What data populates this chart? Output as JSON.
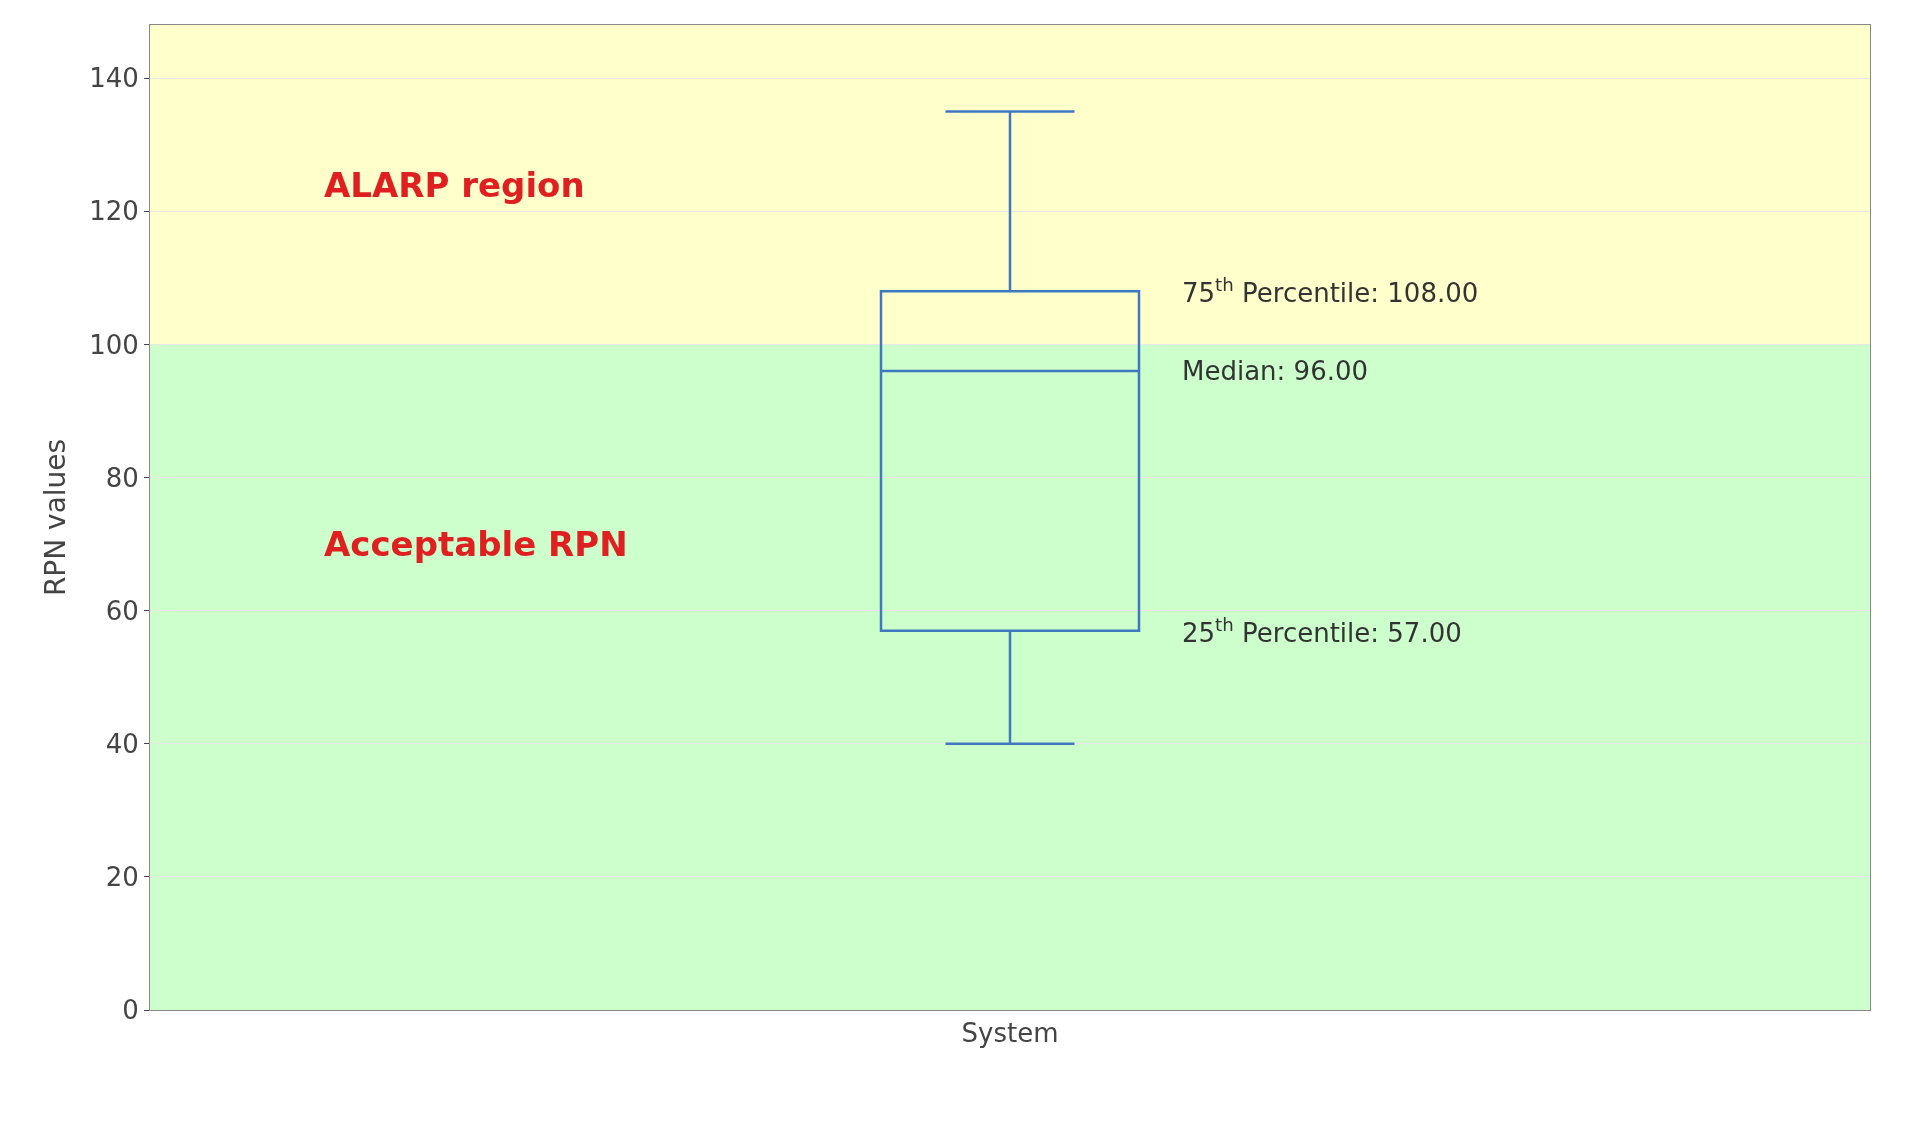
{
  "chart_data": {
    "type": "box",
    "ylabel": "RPN values",
    "categories": [
      "System"
    ],
    "boxes": [
      {
        "low": 40,
        "q1": 57,
        "median": 96,
        "q3": 108,
        "high": 135
      }
    ],
    "color": "#3f78c0",
    "ylim": [
      0,
      148
    ],
    "yticks": [
      0,
      20,
      40,
      60,
      80,
      100,
      120,
      140
    ],
    "grid": "y",
    "bands": [
      {
        "axis": "y",
        "from": 0,
        "to": 100,
        "label": "Acceptable RPN",
        "color": "#ccffcc"
      },
      {
        "axis": "y",
        "from": 100,
        "to": 148,
        "label": "ALARP region",
        "color": "#ffffcc"
      }
    ],
    "annotations": [
      "75$^{th}$ Percentile: 108.00",
      "Median: 96.00",
      "25$^{th}$ Percentile: 57.00"
    ]
  }
}
